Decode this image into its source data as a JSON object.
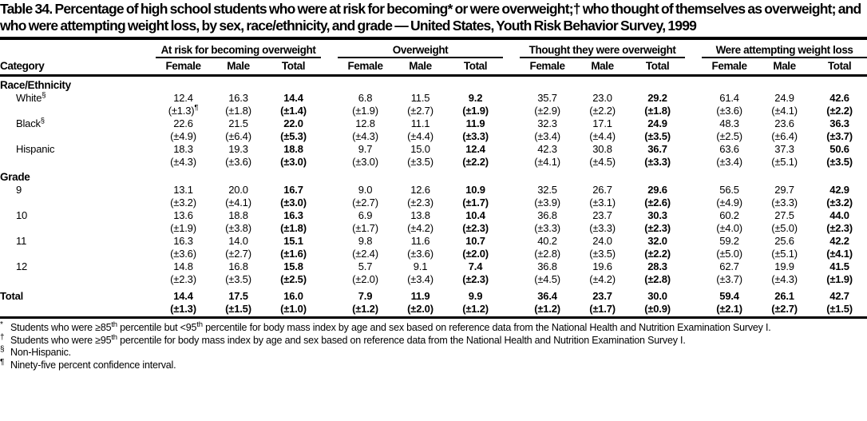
{
  "title": "Table 34. Percentage of high school students who were at risk for becoming* or were overweight;† who thought of themselves as overweight; and who were attempting weight loss, by sex, race/ethnicity, and grade — United States, Youth Risk Behavior Survey, 1999",
  "table": {
    "category_header": "Category",
    "groups": [
      "At risk for becoming overweight",
      "Overweight",
      "Thought they were overweight",
      "Were attempting weight loss"
    ],
    "subcols": [
      "Female",
      "Male",
      "Total"
    ],
    "sections": [
      {
        "label": "Race/Ethnicity",
        "rows": [
          {
            "category": "White",
            "sup": "§",
            "values": [
              "12.4",
              "16.3",
              "14.4",
              "6.8",
              "11.5",
              "9.2",
              "35.7",
              "23.0",
              "29.2",
              "61.4",
              "24.9",
              "42.6"
            ],
            "ci": [
              "(±1.3)¶",
              "(±1.8)",
              "(±1.4)",
              "(±1.9)",
              "(±2.7)",
              "(±1.9)",
              "(±2.9)",
              "(±2.2)",
              "(±1.8)",
              "(±3.6)",
              "(±4.1)",
              "(±2.2)"
            ]
          },
          {
            "category": "Black",
            "sup": "§",
            "values": [
              "22.6",
              "21.5",
              "22.0",
              "12.8",
              "11.1",
              "11.9",
              "32.3",
              "17.1",
              "24.9",
              "48.3",
              "23.6",
              "36.3"
            ],
            "ci": [
              "(±4.9)",
              "(±6.4)",
              "(±5.3)",
              "(±4.3)",
              "(±4.4)",
              "(±3.3)",
              "(±3.4)",
              "(±4.4)",
              "(±3.5)",
              "(±2.5)",
              "(±6.4)",
              "(±3.7)"
            ]
          },
          {
            "category": "Hispanic",
            "values": [
              "18.3",
              "19.3",
              "18.8",
              "9.7",
              "15.0",
              "12.4",
              "42.3",
              "30.8",
              "36.7",
              "63.6",
              "37.3",
              "50.6"
            ],
            "ci": [
              "(±4.3)",
              "(±3.6)",
              "(±3.0)",
              "(±3.0)",
              "(±3.5)",
              "(±2.2)",
              "(±4.1)",
              "(±4.5)",
              "(±3.3)",
              "(±3.4)",
              "(±5.1)",
              "(±3.5)"
            ]
          }
        ]
      },
      {
        "label": "Grade",
        "rows": [
          {
            "category": "9",
            "values": [
              "13.1",
              "20.0",
              "16.7",
              "9.0",
              "12.6",
              "10.9",
              "32.5",
              "26.7",
              "29.6",
              "56.5",
              "29.7",
              "42.9"
            ],
            "ci": [
              "(±3.2)",
              "(±4.1)",
              "(±3.0)",
              "(±2.7)",
              "(±2.3)",
              "(±1.7)",
              "(±3.9)",
              "(±3.1)",
              "(±2.6)",
              "(±4.9)",
              "(±3.3)",
              "(±3.2)"
            ]
          },
          {
            "category": "10",
            "values": [
              "13.6",
              "18.8",
              "16.3",
              "6.9",
              "13.8",
              "10.4",
              "36.8",
              "23.7",
              "30.3",
              "60.2",
              "27.5",
              "44.0"
            ],
            "ci": [
              "(±1.9)",
              "(±3.8)",
              "(±1.8)",
              "(±1.7)",
              "(±4.2)",
              "(±2.3)",
              "(±3.3)",
              "(±3.3)",
              "(±2.3)",
              "(±4.0)",
              "(±5.0)",
              "(±2.3)"
            ]
          },
          {
            "category": "11",
            "values": [
              "16.3",
              "14.0",
              "15.1",
              "9.8",
              "11.6",
              "10.7",
              "40.2",
              "24.0",
              "32.0",
              "59.2",
              "25.6",
              "42.2"
            ],
            "ci": [
              "(±3.6)",
              "(±2.7)",
              "(±1.6)",
              "(±2.4)",
              "(±3.6)",
              "(±2.0)",
              "(±2.8)",
              "(±3.5)",
              "(±2.2)",
              "(±5.0)",
              "(±5.1)",
              "(±4.1)"
            ]
          },
          {
            "category": "12",
            "values": [
              "14.8",
              "16.8",
              "15.8",
              "5.7",
              "9.1",
              "7.4",
              "36.8",
              "19.6",
              "28.3",
              "62.7",
              "19.9",
              "41.5"
            ],
            "ci": [
              "(±2.3)",
              "(±3.5)",
              "(±2.5)",
              "(±2.0)",
              "(±3.4)",
              "(±2.3)",
              "(±4.5)",
              "(±4.2)",
              "(±2.8)",
              "(±3.7)",
              "(±4.3)",
              "(±1.9)"
            ]
          }
        ]
      }
    ],
    "total_row": {
      "category": "Total",
      "bold": true,
      "values": [
        "14.4",
        "17.5",
        "16.0",
        "7.9",
        "11.9",
        "9.9",
        "36.4",
        "23.7",
        "30.0",
        "59.4",
        "26.1",
        "42.7"
      ],
      "ci": [
        "(±1.3)",
        "(±1.5)",
        "(±1.0)",
        "(±1.2)",
        "(±2.0)",
        "(±1.2)",
        "(±1.2)",
        "(±1.7)",
        "(±0.9)",
        "(±2.1)",
        "(±2.7)",
        "(±1.5)"
      ]
    }
  },
  "footnotes": [
    {
      "marker": "*",
      "text": "Students who were ≥85th percentile but <95th percentile for body mass index by age and sex based on reference data from the National Health and Nutrition Examination Survey I."
    },
    {
      "marker": "†",
      "text": "Students who were ≥95th percentile for body mass index by age and sex based on reference data from the National Health and Nutrition Examination Survey I."
    },
    {
      "marker": "§",
      "text": "Non-Hispanic."
    },
    {
      "marker": "¶",
      "text": "Ninety-five percent confidence interval."
    }
  ]
}
